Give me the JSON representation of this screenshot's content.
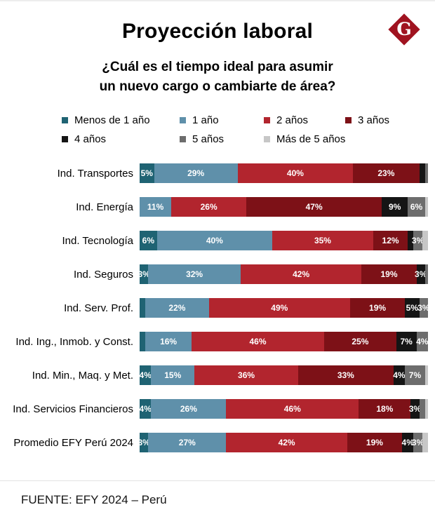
{
  "header": {
    "title": "Proyección laboral",
    "subtitle_line1": "¿Cuál es el tiempo ideal para asumir",
    "subtitle_line2": "un nuevo cargo o cambiarte de área?",
    "logo_letter": "G",
    "logo_color": "#a01320"
  },
  "footer": {
    "source": "FUENTE: EFY 2024 – Perú"
  },
  "chart_data": {
    "type": "bar",
    "stacked": true,
    "orientation": "horizontal",
    "unit": "%",
    "xlim": [
      0,
      100
    ],
    "legend_position": "top",
    "title": "Proyección laboral",
    "subtitle": "¿Cuál es el tiempo ideal para asumir un nuevo cargo o cambiarte de área?",
    "series": [
      "Menos de 1 año",
      "1 año",
      "2 años",
      "3 años",
      "4 años",
      "5 años",
      "Más de 5 años"
    ],
    "series_colors": [
      "#1f6373",
      "#5f90aa",
      "#b2252e",
      "#7d1117",
      "#151515",
      "#6d6d6d",
      "#c7c7c7"
    ],
    "categories": [
      "Ind. Transportes",
      "Ind. Energía",
      "Ind. Tecnología",
      "Ind. Seguros",
      "Ind. Serv. Prof.",
      "Ind. Ing., Inmob. y Const.",
      "Ind. Min., Maq. y Met.",
      "Ind. Servicios Financieros",
      "Promedio EFY Perú 2024"
    ],
    "rows": [
      {
        "category": "Ind. Transportes",
        "values": [
          5,
          29,
          40,
          23,
          2,
          1,
          0
        ],
        "labels": [
          "5%",
          "29%",
          "40%",
          "23%",
          "",
          "",
          ""
        ]
      },
      {
        "category": "Ind. Energía",
        "values": [
          0,
          11,
          26,
          47,
          9,
          6,
          1
        ],
        "labels": [
          "",
          "11%",
          "26%",
          "47%",
          "9%",
          "6%",
          ""
        ]
      },
      {
        "category": "Ind. Tecnología",
        "values": [
          6,
          40,
          35,
          12,
          2,
          3,
          2
        ],
        "labels": [
          "6%",
          "40%",
          "35%",
          "12%",
          "",
          "3%",
          ""
        ]
      },
      {
        "category": "Ind. Seguros",
        "values": [
          3,
          32,
          42,
          19,
          3,
          1,
          0
        ],
        "labels": [
          "3%",
          "32%",
          "42%",
          "19%",
          "3%",
          "",
          ""
        ]
      },
      {
        "category": "Ind. Serv. Prof.",
        "values": [
          2,
          22,
          49,
          19,
          5,
          3,
          0
        ],
        "labels": [
          "",
          "22%",
          "49%",
          "19%",
          "5%",
          "3%",
          ""
        ]
      },
      {
        "category": "Ind. Ing., Inmob. y Const.",
        "values": [
          2,
          16,
          46,
          25,
          7,
          4,
          0
        ],
        "labels": [
          "",
          "16%",
          "46%",
          "25%",
          "7%",
          "4%",
          ""
        ]
      },
      {
        "category": "Ind. Min., Maq. y Met.",
        "values": [
          4,
          15,
          36,
          33,
          4,
          7,
          1
        ],
        "labels": [
          "4%",
          "15%",
          "36%",
          "33%",
          "4%",
          "7%",
          ""
        ]
      },
      {
        "category": "Ind. Servicios Financieros",
        "values": [
          4,
          26,
          46,
          18,
          3,
          2,
          1
        ],
        "labels": [
          "4%",
          "26%",
          "46%",
          "18%",
          "3%",
          "",
          ""
        ]
      },
      {
        "category": "Promedio EFY Perú 2024",
        "values": [
          3,
          27,
          42,
          19,
          4,
          3,
          2
        ],
        "labels": [
          "3%",
          "27%",
          "42%",
          "19%",
          "4%",
          "3%",
          ""
        ]
      }
    ]
  }
}
